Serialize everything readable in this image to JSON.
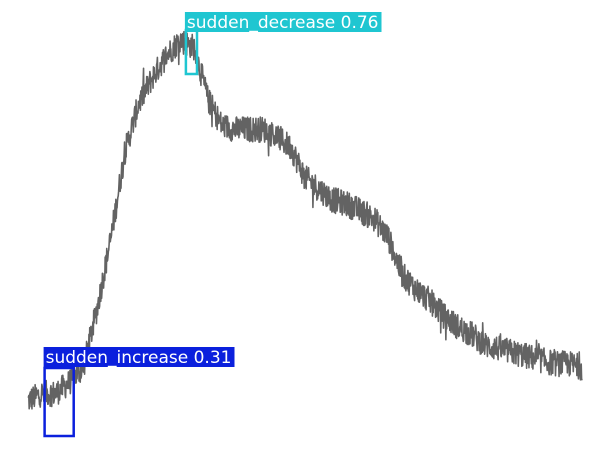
{
  "chart_data": {
    "type": "line",
    "grid": false,
    "legend": "none",
    "series": [
      {
        "color": "#636363",
        "points": [
          [
            0,
            0.03
          ],
          [
            1,
            0.05
          ],
          [
            2,
            0.05
          ],
          [
            3,
            0.08
          ],
          [
            4,
            0.12
          ],
          [
            5,
            0.28
          ],
          [
            6,
            0.47
          ],
          [
            7,
            0.7
          ],
          [
            8,
            0.83
          ],
          [
            9,
            0.9
          ],
          [
            10,
            0.96
          ],
          [
            11,
            1.0
          ],
          [
            12,
            0.98
          ],
          [
            13,
            0.84
          ],
          [
            14,
            0.77
          ],
          [
            15,
            0.76
          ],
          [
            16,
            0.76
          ],
          [
            17,
            0.76
          ],
          [
            18,
            0.74
          ],
          [
            19,
            0.71
          ],
          [
            20,
            0.63
          ],
          [
            21,
            0.6
          ],
          [
            22,
            0.57
          ],
          [
            23,
            0.56
          ],
          [
            24,
            0.54
          ],
          [
            25,
            0.52
          ],
          [
            26,
            0.47
          ],
          [
            27,
            0.37
          ],
          [
            28,
            0.33
          ],
          [
            29,
            0.3
          ],
          [
            30,
            0.26
          ],
          [
            31,
            0.23
          ],
          [
            32,
            0.21
          ],
          [
            33,
            0.18
          ],
          [
            34,
            0.17
          ],
          [
            35,
            0.16
          ],
          [
            36,
            0.15
          ],
          [
            37,
            0.14
          ],
          [
            38,
            0.13
          ],
          [
            39,
            0.13
          ],
          [
            40,
            0.12
          ]
        ],
        "noise": 0.035
      }
    ],
    "detections": [
      {
        "label": "sudden_decrease 0.76",
        "color": "#1fc6d1",
        "x_range": [
          11.4,
          12.2
        ]
      },
      {
        "label": "sudden_increase 0.31",
        "color": "#0b20dd",
        "x_range": [
          1.2,
          3.3
        ]
      }
    ]
  }
}
